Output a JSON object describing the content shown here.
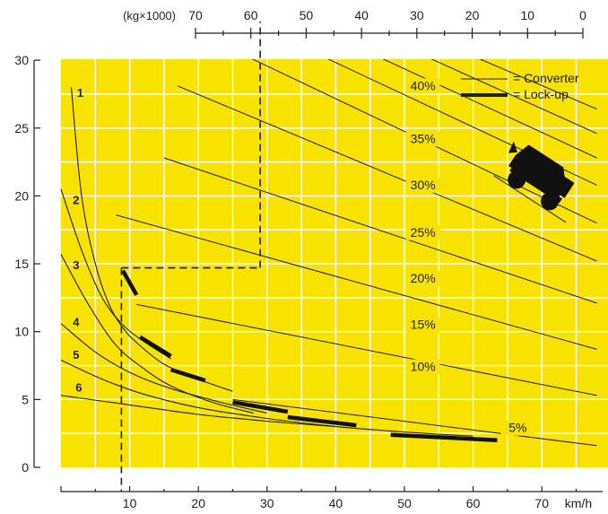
{
  "chart_data": {
    "type": "line",
    "title": "",
    "xlabel": "",
    "x_unit": "km/h",
    "ylabel": "",
    "xlim": [
      0,
      78
    ],
    "ylim": [
      0,
      30
    ],
    "x_ticks": [
      10,
      20,
      30,
      40,
      50,
      60,
      70
    ],
    "y_ticks": [
      0,
      5,
      10,
      15,
      20,
      25,
      30
    ],
    "top_axis": {
      "label": "(kg×1000)",
      "ticks": [
        "70",
        "60",
        "50",
        "40",
        "30",
        "20",
        "10",
        "0"
      ]
    },
    "grid": true,
    "legend": {
      "position": "top-right",
      "entries": [
        {
          "name": "= Converter",
          "style": "thin"
        },
        {
          "name": "= Lock-up",
          "style": "thick"
        }
      ]
    },
    "grade_lines": [
      {
        "label": "5%",
        "points": [
          [
            25,
            5.0
          ],
          [
            78,
            1.6
          ]
        ]
      },
      {
        "label": "10%",
        "points": [
          [
            11,
            12.0
          ],
          [
            78,
            5.3
          ]
        ]
      },
      {
        "label": "15%",
        "points": [
          [
            8,
            18.6
          ],
          [
            78,
            8.7
          ]
        ]
      },
      {
        "label": "20%",
        "points": [
          [
            15,
            22.8
          ],
          [
            78,
            12.1
          ]
        ]
      },
      {
        "label": "25%",
        "points": [
          [
            17,
            28.1
          ],
          [
            78,
            15.2
          ]
        ]
      },
      {
        "label": "30%",
        "points": [
          [
            27,
            30.3
          ],
          [
            78,
            18.0
          ]
        ]
      },
      {
        "label": "35%",
        "points": [
          [
            38,
            30.3
          ],
          [
            78,
            20.8
          ]
        ]
      },
      {
        "label": "40%",
        "points": [
          [
            46,
            30.3
          ],
          [
            78,
            22.8
          ]
        ]
      },
      {
        "label": "",
        "points": [
          [
            53,
            30.3
          ],
          [
            78,
            24.6
          ]
        ]
      },
      {
        "label": "",
        "points": [
          [
            60,
            30.3
          ],
          [
            78,
            26.4
          ]
        ]
      }
    ],
    "gears": [
      {
        "name": "1",
        "converter": [
          [
            1.5,
            28
          ],
          [
            3,
            20
          ],
          [
            5,
            15
          ],
          [
            7,
            12
          ],
          [
            9,
            10.3
          ],
          [
            11,
            9.2
          ],
          [
            15,
            7.6
          ],
          [
            20,
            6.5
          ],
          [
            25,
            5.6
          ]
        ]
      },
      {
        "name": "2",
        "converter": [
          [
            0,
            20.5
          ],
          [
            3,
            16
          ],
          [
            6,
            12.5
          ],
          [
            9,
            10.5
          ],
          [
            12,
            9.3
          ],
          [
            16,
            8.0
          ]
        ]
      },
      {
        "name": "3",
        "converter": [
          [
            0,
            15.7
          ],
          [
            4,
            12
          ],
          [
            8,
            9
          ],
          [
            12,
            7.3
          ],
          [
            16,
            6.0
          ],
          [
            22,
            4.8
          ],
          [
            28,
            4.0
          ]
        ]
      },
      {
        "name": "4",
        "converter": [
          [
            0,
            10.6
          ],
          [
            5,
            8.5
          ],
          [
            10,
            7.0
          ],
          [
            16,
            5.8
          ],
          [
            24,
            4.7
          ],
          [
            30,
            4.0
          ]
        ]
      },
      {
        "name": "5",
        "converter": [
          [
            0,
            7.9
          ],
          [
            6,
            6.5
          ],
          [
            12,
            5.4
          ],
          [
            20,
            4.4
          ],
          [
            30,
            3.6
          ],
          [
            40,
            3.0
          ]
        ]
      },
      {
        "name": "6",
        "converter": [
          [
            0,
            5.3
          ],
          [
            10,
            4.6
          ],
          [
            20,
            3.9
          ],
          [
            30,
            3.4
          ],
          [
            40,
            3.0
          ],
          [
            50,
            2.6
          ],
          [
            60,
            2.3
          ]
        ]
      }
    ],
    "lockup": [
      [
        [
          9,
          14.5
        ],
        [
          11,
          12.7
        ]
      ],
      [
        [
          11.5,
          9.6
        ],
        [
          16,
          8.2
        ]
      ],
      [
        [
          16,
          7.2
        ],
        [
          21,
          6.4
        ]
      ],
      [
        [
          25,
          4.8
        ],
        [
          33,
          4.1
        ]
      ],
      [
        [
          33,
          3.7
        ],
        [
          43,
          3.1
        ]
      ],
      [
        [
          48,
          2.4
        ],
        [
          63.5,
          2.0
        ]
      ]
    ],
    "example": {
      "speed": 8.8,
      "rimpull": 14.7,
      "grade_intersect_speed": 29
    }
  }
}
